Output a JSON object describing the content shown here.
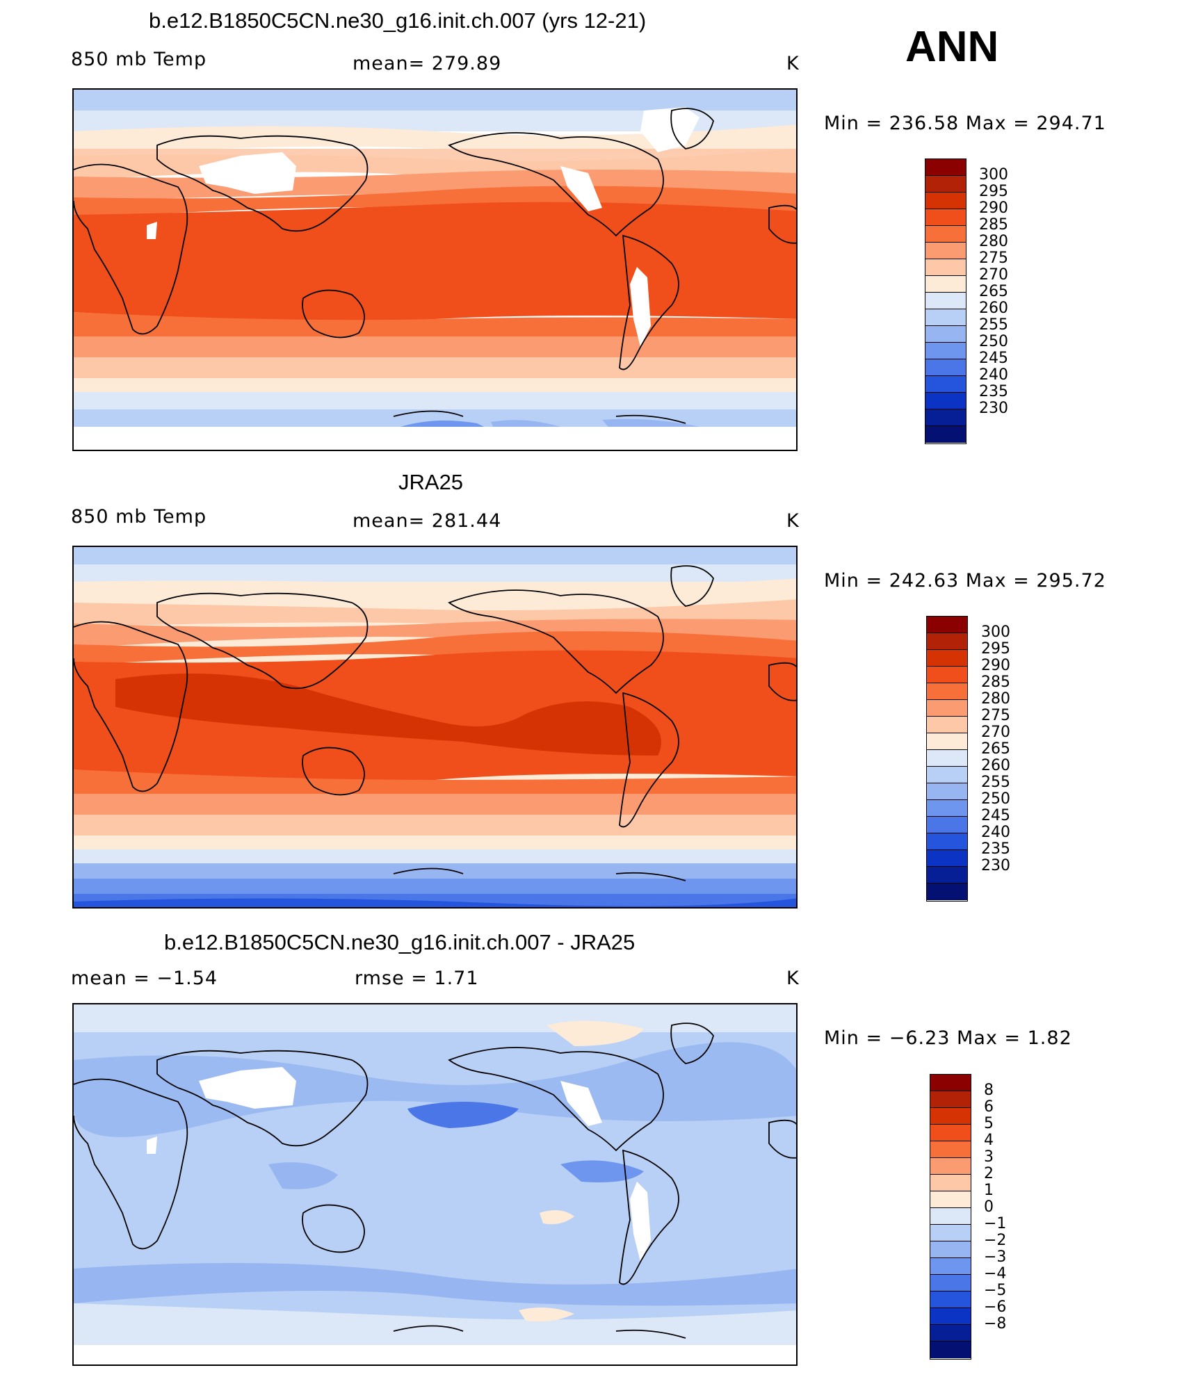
{
  "season": "ANN",
  "panels": [
    {
      "title": "b.e12.B1850C5CN.ne30_g16.init.ch.007 (yrs 12-21)",
      "left_label": "850 mb Temp",
      "center_label": "mean=  279.89",
      "units": "K",
      "minmax": "Min  =  236.58  Max  =  294.71",
      "colorbar": {
        "colors": [
          "#8b0000",
          "#b22206",
          "#d63304",
          "#f04e1a",
          "#f7703a",
          "#fb9b72",
          "#fdc8a8",
          "#fdebd8",
          "#dce8f7",
          "#b8d0f5",
          "#97b6f1",
          "#6f96ee",
          "#4a76e8",
          "#2555dc",
          "#0b34c4",
          "#071f96",
          "#051073"
        ],
        "labels": [
          "300",
          "295",
          "290",
          "285",
          "280",
          "275",
          "270",
          "265",
          "260",
          "255",
          "250",
          "245",
          "240",
          "235",
          "230"
        ]
      }
    },
    {
      "title": "JRA25",
      "left_label": "850 mb Temp",
      "center_label": "mean=  281.44",
      "units": "K",
      "minmax": "Min  =  242.63  Max  =  295.72",
      "colorbar": {
        "colors": [
          "#8b0000",
          "#b22206",
          "#d63304",
          "#f04e1a",
          "#f7703a",
          "#fb9b72",
          "#fdc8a8",
          "#fdebd8",
          "#dce8f7",
          "#b8d0f5",
          "#97b6f1",
          "#6f96ee",
          "#4a76e8",
          "#2555dc",
          "#0b34c4",
          "#071f96",
          "#051073"
        ],
        "labels": [
          "300",
          "295",
          "290",
          "285",
          "280",
          "275",
          "270",
          "265",
          "260",
          "255",
          "250",
          "245",
          "240",
          "235",
          "230"
        ]
      }
    },
    {
      "title": "b.e12.B1850C5CN.ne30_g16.init.ch.007 - JRA25",
      "left_label": "mean =    −1.54",
      "center_label": "rmse =     1.71",
      "units": "K",
      "minmax": "Min  =    −6.23  Max  =     1.82",
      "colorbar": {
        "colors": [
          "#8b0000",
          "#b22206",
          "#d63304",
          "#f04e1a",
          "#f7703a",
          "#fb9b72",
          "#fdc8a8",
          "#fdebd8",
          "#dce8f7",
          "#b8d0f5",
          "#97b6f1",
          "#6f96ee",
          "#4a76e8",
          "#2555dc",
          "#0b34c4",
          "#071f96",
          "#051073"
        ],
        "labels": [
          "8",
          "6",
          "5",
          "4",
          "3",
          "2",
          "1",
          "0",
          "−1",
          "−2",
          "−3",
          "−4",
          "−5",
          "−6",
          "−8"
        ]
      }
    }
  ]
}
